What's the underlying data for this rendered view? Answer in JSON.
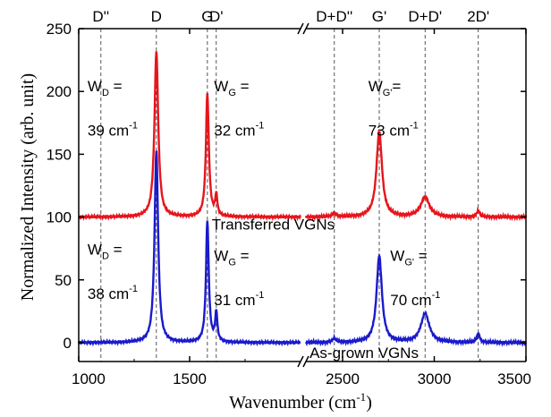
{
  "chart_data": {
    "type": "line",
    "xlabel": "Wavenumber (cm",
    "xlabel_sup": "-1",
    "xlabel_close": ")",
    "ylabel": "Normalized Intensity (arb. unit)",
    "ylim": [
      -15,
      250
    ],
    "yticks": [
      0,
      50,
      100,
      150,
      200,
      250
    ],
    "x_segments": [
      {
        "range": [
          1000,
          2000
        ],
        "ticks": [
          1000,
          1500
        ]
      },
      {
        "range": [
          2300,
          3500
        ],
        "ticks": [
          2500,
          3000,
          3500
        ]
      }
    ],
    "axis_break": true,
    "peak_lines": [
      {
        "label": "D''",
        "x": 1100
      },
      {
        "label": "D",
        "x": 1350
      },
      {
        "label": "G",
        "x": 1580
      },
      {
        "label": "D'",
        "x": 1620
      },
      {
        "label": "D+D''",
        "x": 2455
      },
      {
        "label": "G'",
        "x": 2700
      },
      {
        "label": "D+D'",
        "x": 2950
      },
      {
        "label": "2D'",
        "x": 3240
      }
    ],
    "series": [
      {
        "name": "Transferred VGNs",
        "color": "#e8141c",
        "baseline": 100,
        "peaks": [
          {
            "x": 1350,
            "height": 132,
            "width": 20
          },
          {
            "x": 1580,
            "height": 98,
            "width": 16
          },
          {
            "x": 1620,
            "height": 16,
            "width": 12
          },
          {
            "x": 2455,
            "height": 3,
            "width": 25
          },
          {
            "x": 2700,
            "height": 68,
            "width": 36
          },
          {
            "x": 2950,
            "height": 16,
            "width": 55
          },
          {
            "x": 3240,
            "height": 5,
            "width": 20
          }
        ]
      },
      {
        "name": "As-grown VGNs",
        "color": "#1a1acc",
        "baseline": 0,
        "peaks": [
          {
            "x": 1350,
            "height": 153,
            "width": 19
          },
          {
            "x": 1580,
            "height": 97,
            "width": 15
          },
          {
            "x": 1620,
            "height": 23,
            "width": 12
          },
          {
            "x": 2455,
            "height": 3,
            "width": 25
          },
          {
            "x": 2700,
            "height": 69,
            "width": 35
          },
          {
            "x": 2950,
            "height": 23,
            "width": 55
          },
          {
            "x": 3240,
            "height": 7,
            "width": 20
          }
        ]
      }
    ],
    "annotations": [
      {
        "prefix": "W",
        "sub": "D",
        "suffix": " =",
        "x": 1040,
        "y": 200
      },
      {
        "prefix": "39 cm",
        "sup": "-1",
        "suffix": "",
        "x": 1040,
        "y": 165
      },
      {
        "prefix": "W",
        "sub": "G",
        "suffix": " =",
        "x": 1610,
        "y": 200
      },
      {
        "prefix": "32 cm",
        "sup": "-1",
        "suffix": "",
        "x": 1610,
        "y": 165
      },
      {
        "prefix": "W",
        "sub": "G'",
        "suffix": "=",
        "x": 2640,
        "y": 200
      },
      {
        "prefix": "73 cm",
        "sup": "-1",
        "suffix": "",
        "x": 2640,
        "y": 165
      },
      {
        "prefix": "Transferred VGNs",
        "suffix": "",
        "x": 1600,
        "y": 90
      },
      {
        "prefix": "W",
        "sub": "D",
        "suffix": " =",
        "x": 1040,
        "y": 70
      },
      {
        "prefix": "38 cm",
        "sup": "-1",
        "suffix": "",
        "x": 1040,
        "y": 35
      },
      {
        "prefix": "W",
        "sub": "G",
        "suffix": " =",
        "x": 1610,
        "y": 65
      },
      {
        "prefix": "31 cm",
        "sup": "-1",
        "suffix": "",
        "x": 1610,
        "y": 30
      },
      {
        "prefix": "W",
        "sub": "G'",
        "suffix": " =",
        "x": 2760,
        "y": 65
      },
      {
        "prefix": "70 cm",
        "sup": "-1",
        "suffix": "",
        "x": 2760,
        "y": 30
      },
      {
        "prefix": "As-grown VGNs",
        "suffix": "",
        "x": 2320,
        "y": -12
      }
    ]
  }
}
